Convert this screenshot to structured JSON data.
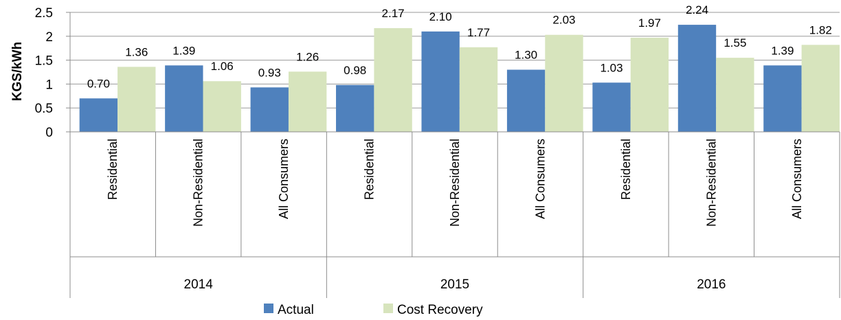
{
  "chart_data": {
    "type": "bar",
    "ylabel": "KGS/kWh",
    "ylim": [
      0,
      2.5
    ],
    "yticks": [
      "0",
      "0.5",
      "1",
      "1.5",
      "2",
      "2.5"
    ],
    "grid": true,
    "legend_position": "bottom",
    "groups": [
      {
        "label": "2014",
        "categories": [
          "Residential",
          "Non-Residential",
          "All Consumers"
        ]
      },
      {
        "label": "2015",
        "categories": [
          "Residential",
          "Non-Residential",
          "All Consumers"
        ]
      },
      {
        "label": "2016",
        "categories": [
          "Residential",
          "Non-Residential",
          "All Consumers"
        ]
      }
    ],
    "series": [
      {
        "name": "Actual",
        "color": "#4f81bd",
        "values": [
          0.7,
          1.39,
          0.93,
          0.98,
          2.1,
          1.3,
          1.03,
          2.24,
          1.39
        ],
        "labels": [
          "0.70",
          "1.39",
          "0.93",
          "0.98",
          "2.10",
          "1.30",
          "1.03",
          "2.24",
          "1.39"
        ]
      },
      {
        "name": "Cost Recovery",
        "color": "#d7e4bd",
        "values": [
          1.36,
          1.06,
          1.26,
          2.17,
          1.77,
          2.03,
          1.97,
          1.55,
          1.82
        ],
        "labels": [
          "1.36",
          "1.06",
          "1.26",
          "2.17",
          "1.77",
          "2.03",
          "1.97",
          "1.55",
          "1.82"
        ]
      }
    ]
  }
}
